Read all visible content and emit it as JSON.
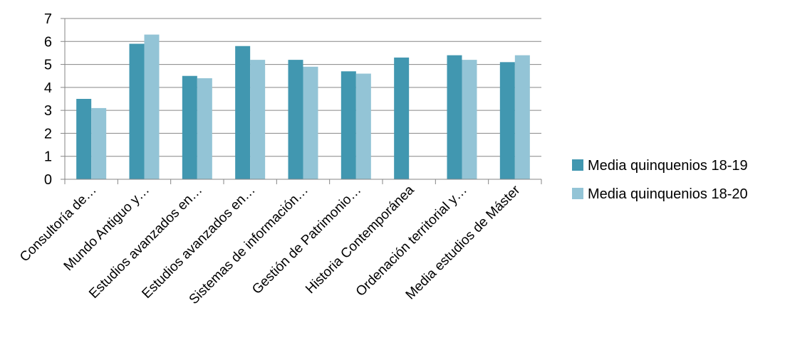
{
  "chart_data": {
    "type": "bar",
    "categories": [
      "Consultoría de…",
      "Mundo Antiguo y…",
      "Estudios avanzados en…",
      "Estudios avanzados en…",
      "Sistemas de información…",
      "Gestión de Patrimonio…",
      "Historia Contemporánea",
      "Ordenación territorial y…",
      "Media estudios de Máster"
    ],
    "series": [
      {
        "name": "Media quinquenios 18-19",
        "color": "#4197b0",
        "values": [
          3.5,
          5.9,
          4.5,
          5.8,
          5.2,
          4.7,
          5.3,
          5.4,
          5.1
        ]
      },
      {
        "name": "Media quinquenios 18-20",
        "color": "#93c4d6",
        "values": [
          3.1,
          6.3,
          4.4,
          5.2,
          4.9,
          4.6,
          null,
          5.2,
          5.4
        ]
      }
    ],
    "ylim": [
      0,
      7
    ],
    "yticks": [
      "0",
      "1",
      "2",
      "3",
      "4",
      "5",
      "6",
      "7"
    ],
    "grid": true,
    "legend": "right",
    "title": "",
    "xlabel": "",
    "ylabel": ""
  }
}
